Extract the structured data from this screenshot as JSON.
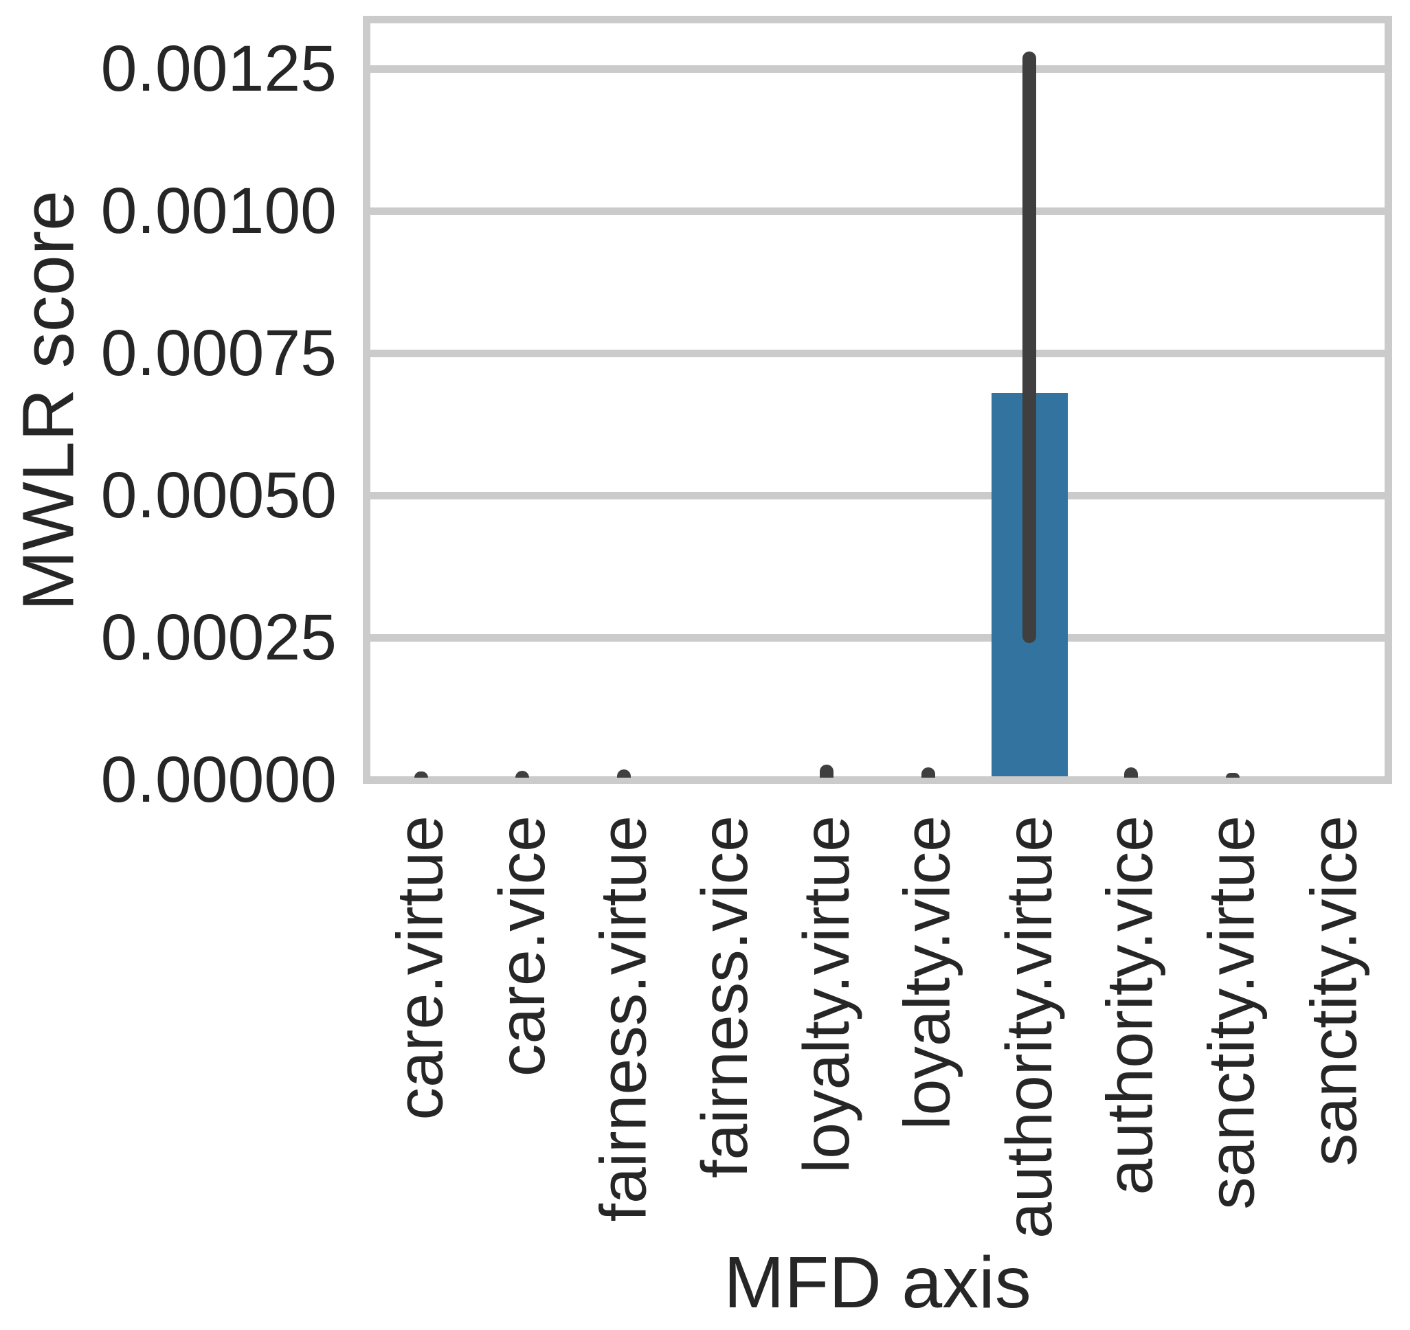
{
  "chart_data": {
    "type": "bar",
    "title": "",
    "xlabel": "MFD axis",
    "ylabel": "MWLR score",
    "categories": [
      "care.virtue",
      "care.vice",
      "fairness.virtue",
      "fairness.vice",
      "loyalty.virtue",
      "loyalty.vice",
      "authority.virtue",
      "authority.vice",
      "sanctity.virtue",
      "sanctity.vice"
    ],
    "values": [
      0,
      0,
      0,
      0,
      0,
      0,
      0.00068,
      0,
      0,
      0
    ],
    "error_bars": {
      "low": [
        0,
        0,
        0,
        0,
        0,
        0,
        0.00024,
        0,
        0,
        0
      ],
      "high": [
        1.4e-05,
        1.6e-05,
        1.8e-05,
        0,
        2.6e-05,
        2.2e-05,
        0.00128,
        2.2e-05,
        1.2e-05,
        0
      ]
    },
    "yticks": [
      0,
      0.00025,
      0.0005,
      0.00075,
      0.001,
      0.00125
    ],
    "ytick_labels": [
      "0.00000",
      "0.00025",
      "0.00050",
      "0.00075",
      "0.00100",
      "0.00125"
    ],
    "ylim": [
      0,
      0.00133
    ],
    "grid": true,
    "legend": false,
    "bar_color": "#32749f",
    "error_color": "#3f3f3f",
    "grid_color": "#cbcbcb",
    "spine_color": "#cbcbcb",
    "text_color": "#262626"
  }
}
